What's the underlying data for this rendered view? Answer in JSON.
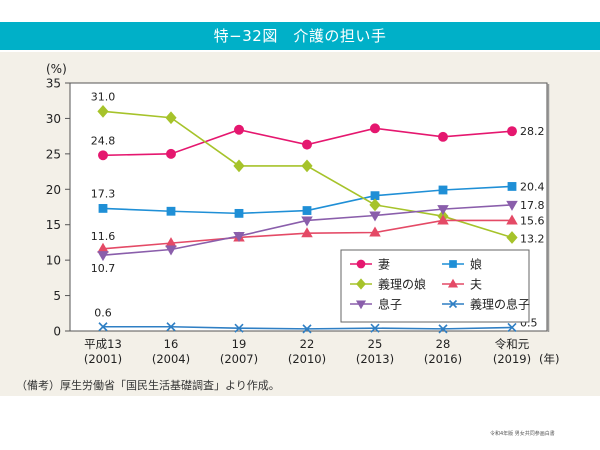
{
  "header": {
    "title": "特−32図　介護の担い手"
  },
  "source_note": "（備考）厚生労働省「国民生活基礎調査」より作成。",
  "footer_credit": "令和4年版 男女共同参画白書",
  "chart_data": {
    "type": "line",
    "title": "介護の担い手",
    "figure_number": "特−32図",
    "ylabel": "(%)",
    "xlabel": "(年)",
    "ylim": [
      0,
      35
    ],
    "yticks": [
      0,
      5,
      10,
      15,
      20,
      25,
      30,
      35
    ],
    "grid": false,
    "legend_position": "bottom-right",
    "categories": [
      {
        "era": "平成13",
        "year": "(2001)"
      },
      {
        "era": "16",
        "year": "(2004)"
      },
      {
        "era": "19",
        "year": "(2007)"
      },
      {
        "era": "22",
        "year": "(2010)"
      },
      {
        "era": "25",
        "year": "(2013)"
      },
      {
        "era": "28",
        "year": "(2016)"
      },
      {
        "era": "令和元",
        "year": "(2019)"
      }
    ],
    "x_unit_label": "(年)",
    "series": [
      {
        "name": "妻",
        "color": "#e5176f",
        "marker": "circle",
        "values": [
          24.8,
          25.0,
          28.4,
          26.3,
          28.6,
          27.4,
          28.2
        ],
        "labels": {
          "first": "24.8",
          "last": "28.2"
        }
      },
      {
        "name": "娘",
        "color": "#1f8fd6",
        "marker": "square",
        "values": [
          17.3,
          16.9,
          16.6,
          17.0,
          19.1,
          19.9,
          20.4
        ],
        "labels": {
          "first": "17.3",
          "last": "20.4"
        }
      },
      {
        "name": "義理の娘",
        "color": "#a6c32a",
        "marker": "diamond",
        "values": [
          31.0,
          30.1,
          23.3,
          23.3,
          17.8,
          16.2,
          13.2
        ],
        "labels": {
          "first": "31.0",
          "last": "13.2"
        }
      },
      {
        "name": "夫",
        "color": "#e44a66",
        "marker": "triangle-up",
        "values": [
          11.6,
          12.4,
          13.2,
          13.8,
          13.9,
          15.6,
          15.6
        ],
        "labels": {
          "first": "11.6",
          "last": "15.6"
        }
      },
      {
        "name": "息子",
        "color": "#8a5eab",
        "marker": "triangle-down",
        "values": [
          10.7,
          11.5,
          13.4,
          15.6,
          16.3,
          17.2,
          17.8
        ],
        "labels": {
          "first": "10.7",
          "last": "17.8"
        }
      },
      {
        "name": "義理の息子",
        "color": "#2f7fc4",
        "marker": "x",
        "values": [
          0.6,
          0.6,
          0.4,
          0.3,
          0.4,
          0.3,
          0.5
        ],
        "labels": {
          "first": "0.6",
          "last": "0.5"
        }
      }
    ]
  }
}
